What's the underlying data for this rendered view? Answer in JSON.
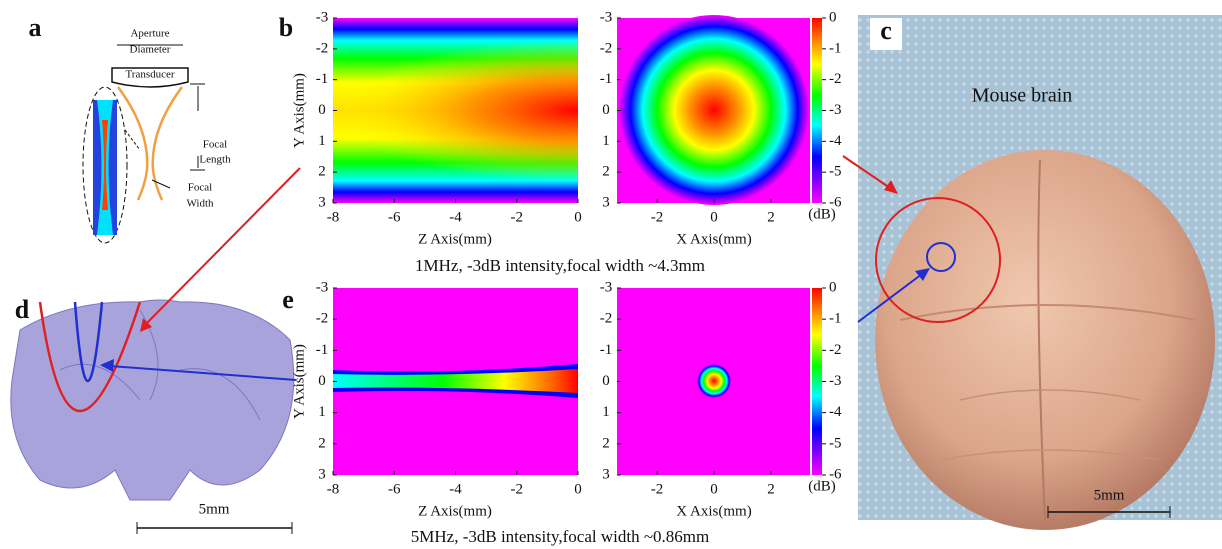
{
  "figure": {
    "panel_labels": [
      "a",
      "b",
      "c",
      "d",
      "e"
    ],
    "a": {
      "aperture": "Aperture",
      "diameter": "Diameter",
      "transducer": "Transducer",
      "focal_length": [
        "Focal",
        "Length"
      ],
      "focal_width": [
        "Focal",
        "Width"
      ]
    },
    "axes": {
      "y_title": "Y Axis(mm)",
      "z_title": "Z Axis(mm)",
      "x_title": "X Axis(mm)",
      "y_ticks": [
        -3,
        -2,
        -1,
        0,
        1,
        2,
        3
      ],
      "z_ticks": [
        -8,
        -6,
        -4,
        -2,
        0
      ],
      "x_ticks": [
        -2,
        0,
        2
      ],
      "colorbar_ticks": [
        0,
        -1,
        -2,
        -3,
        -4,
        -5,
        -6
      ],
      "colorbar_unit": "(dB)"
    },
    "b_caption": "1MHz, -3dB intensity,focal width ~4.3mm",
    "e_caption": "5MHz, -3dB intensity,focal width ~0.86mm",
    "c": {
      "title": "Mouse brain",
      "scale": "5mm"
    },
    "d": {
      "scale": "5mm"
    }
  }
}
